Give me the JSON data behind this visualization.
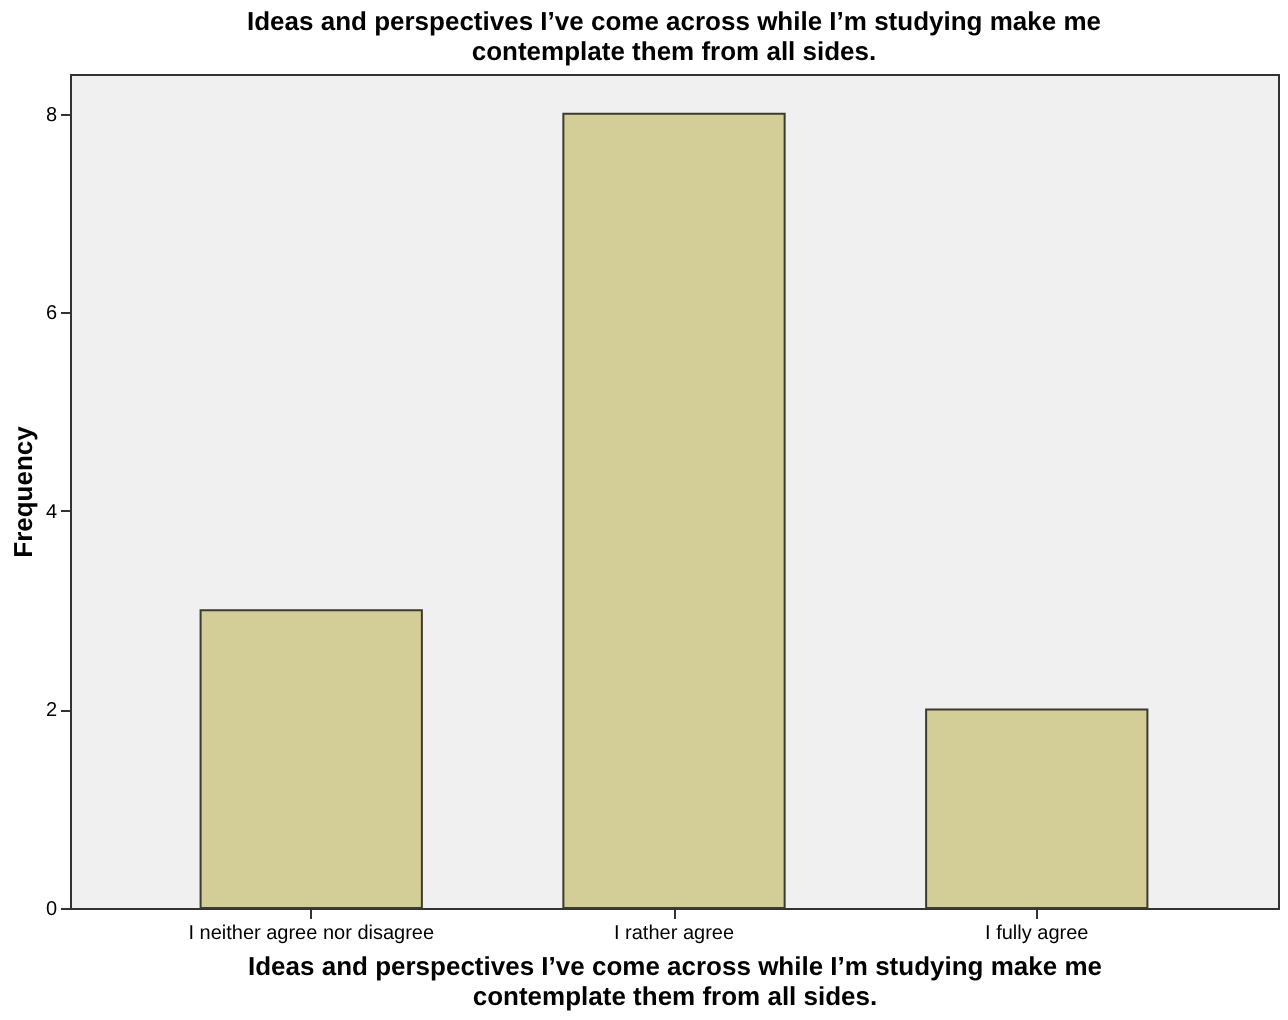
{
  "chart_data": {
    "type": "bar",
    "title": "Ideas and perspectives I’ve come across while I’m studying make me contemplate them from all sides.",
    "xlabel": "Ideas and perspectives I’ve come across while I’m studying make me contemplate them from all sides.",
    "ylabel": "Frequency",
    "categories": [
      "I neither agree nor disagree",
      "I rather agree",
      "I fully agree"
    ],
    "values": [
      3,
      8,
      2
    ],
    "color": "#d3ce97",
    "ylim": [
      0,
      8.4
    ],
    "yticks": [
      0,
      2,
      4,
      6,
      8
    ],
    "grid": false
  }
}
